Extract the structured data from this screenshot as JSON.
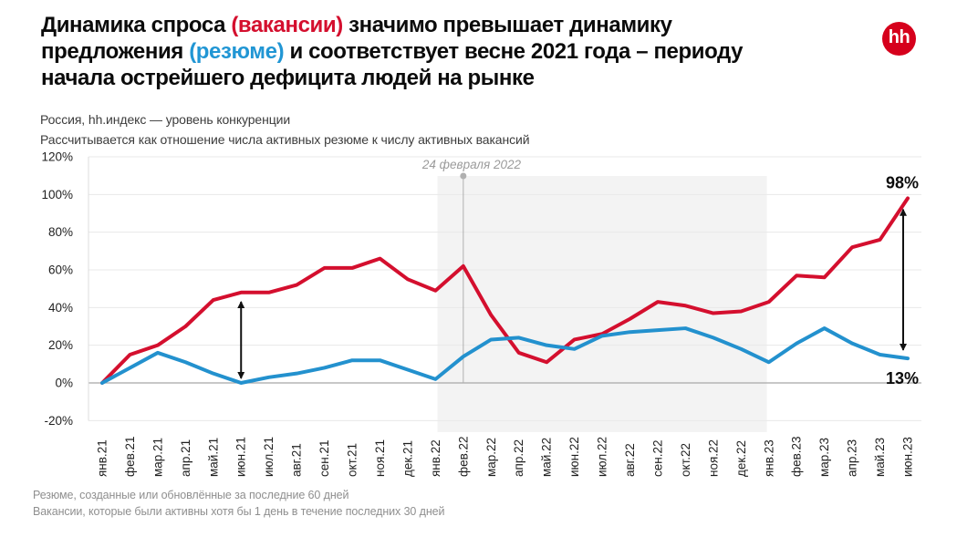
{
  "palette": {
    "accent_red": "#d40f2e",
    "accent_blue": "#2196d4",
    "logo_red": "#d6001c",
    "band": "#f3f3f3",
    "grid": "#e8e8e8",
    "zero_axis": "#a8a8a8",
    "axis_edge": "#dcdcdc",
    "event_gray": "#b0b0b0",
    "arrow_black": "#111111"
  },
  "header": {
    "title_lines": [
      [
        {
          "text": "Динамика спроса "
        },
        {
          "text": "(вакансии)",
          "accent": "red"
        },
        {
          "text": " значимо превышает динамику"
        }
      ],
      [
        {
          "text": "предложения "
        },
        {
          "text": "(резюме)",
          "accent": "blue"
        },
        {
          "text": " и соответствует весне 2021 года – периоду"
        }
      ],
      [
        {
          "text": "начала острейшего дефицита людей на рынке"
        }
      ]
    ],
    "subtitle1": "Россия, hh.индекс — уровень конкуренции",
    "subtitle2": "Рассчитывается как отношение числа активных резюме к числу активных вакансий",
    "logo_text": "hh"
  },
  "footer": {
    "line1": "Резюме, созданные или обновлённые за последние 60 дней",
    "line2": "Вакансии, которые были активны хотя бы 1 день в течение последних 30 дней"
  },
  "chart_data": {
    "type": "line",
    "title": "Россия, hh.индекс — уровень конкуренции",
    "subtitle": "Рассчитывается как отношение числа активных резюме к числу активных вакансий",
    "categories": [
      "янв.21",
      "фев.21",
      "мар.21",
      "апр.21",
      "май.21",
      "июн.21",
      "июл.21",
      "авг.21",
      "сен.21",
      "окт.21",
      "ноя.21",
      "дек.21",
      "янв.22",
      "фев.22",
      "мар.22",
      "апр.22",
      "май.22",
      "июн.22",
      "июл.22",
      "авг.22",
      "сен.22",
      "окт.22",
      "ноя.22",
      "дек.22",
      "янв.23",
      "фев.23",
      "мар.23",
      "апр.23",
      "май.23",
      "июн.23"
    ],
    "series": [
      {
        "name": "вакансии",
        "color": "#d40f2e",
        "values": [
          0,
          15,
          20,
          30,
          44,
          48,
          48,
          52,
          61,
          61,
          66,
          55,
          49,
          62,
          36,
          16,
          11,
          23,
          26,
          34,
          43,
          41,
          37,
          38,
          43,
          57,
          56,
          72,
          76,
          98
        ]
      },
      {
        "name": "резюме",
        "color": "#2391ce",
        "values": [
          0,
          8,
          16,
          11,
          5,
          0,
          3,
          5,
          8,
          12,
          12,
          7,
          2,
          14,
          23,
          24,
          20,
          18,
          25,
          27,
          28,
          29,
          24,
          18,
          11,
          21,
          29,
          21,
          15,
          13
        ]
      }
    ],
    "ylim": [
      -20,
      120
    ],
    "ytick_step": 20,
    "ytick_suffix": "%",
    "grid": "horizontal",
    "legend": "none",
    "annotations": {
      "event_line": {
        "month": "фев.22",
        "label": "24 февраля 2022"
      },
      "shaded_region": {
        "from": "фев.22",
        "to": "дек.22"
      },
      "arrows": [
        {
          "month": "июн.21",
          "from_value": 1,
          "to_value": 44.5,
          "dx": 0
        },
        {
          "month": "июн.23",
          "from_value": 16,
          "to_value": 93.5,
          "dx": -5
        }
      ],
      "end_labels": [
        {
          "text": "98%",
          "month": "июн.23",
          "value": 103.2,
          "dx": -6
        },
        {
          "text": "13%",
          "month": "июн.23",
          "value": -0.5,
          "dx": -6
        }
      ]
    }
  }
}
